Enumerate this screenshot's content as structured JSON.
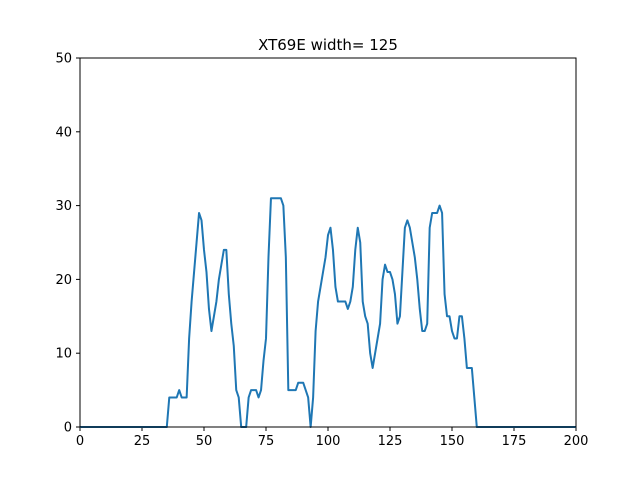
{
  "chart_data": {
    "type": "line",
    "title": "XT69E width= 125",
    "xlabel": "",
    "ylabel": "",
    "xlim": [
      0,
      200
    ],
    "ylim": [
      0,
      50
    ],
    "xticks": [
      0,
      25,
      50,
      75,
      100,
      125,
      150,
      175,
      200
    ],
    "yticks": [
      0,
      10,
      20,
      30,
      40,
      50
    ],
    "grid": false,
    "line_color": "#1f77b4",
    "series": [
      {
        "x": [
          0,
          35,
          36,
          37,
          38,
          39,
          40,
          41,
          42,
          43,
          44,
          45,
          46,
          47,
          48,
          49,
          50,
          51,
          52,
          53,
          54,
          55,
          56,
          57,
          58,
          59,
          60,
          61,
          62,
          63,
          64,
          65,
          66,
          67,
          68,
          69,
          70,
          71,
          72,
          73,
          74,
          75,
          76,
          77,
          78,
          79,
          80,
          81,
          82,
          83,
          84,
          85,
          86,
          87,
          88,
          89,
          90,
          91,
          92,
          93,
          94,
          95,
          96,
          97,
          98,
          99,
          100,
          101,
          102,
          103,
          104,
          105,
          106,
          107,
          108,
          109,
          110,
          111,
          112,
          113,
          114,
          115,
          116,
          117,
          118,
          119,
          120,
          121,
          122,
          123,
          124,
          125,
          126,
          127,
          128,
          129,
          130,
          131,
          132,
          133,
          134,
          135,
          136,
          137,
          138,
          139,
          140,
          141,
          142,
          143,
          144,
          145,
          146,
          147,
          148,
          149,
          150,
          151,
          152,
          153,
          154,
          155,
          156,
          157,
          158,
          159,
          160,
          161,
          200
        ],
        "y": [
          0,
          0,
          4,
          4,
          4,
          4,
          5,
          4,
          4,
          4,
          12,
          17,
          21,
          25,
          29,
          28,
          24,
          21,
          16,
          13,
          15,
          17,
          20,
          22,
          24,
          24,
          18,
          14,
          11,
          5,
          4,
          0,
          0,
          0,
          4,
          5,
          5,
          5,
          4,
          5,
          9,
          12,
          23,
          31,
          31,
          31,
          31,
          31,
          30,
          23,
          5,
          5,
          5,
          5,
          6,
          6,
          6,
          5,
          4,
          0,
          4,
          13,
          17,
          19,
          21,
          23,
          26,
          27,
          24,
          19,
          17,
          17,
          17,
          17,
          16,
          17,
          19,
          24,
          27,
          25,
          17,
          15,
          14,
          10,
          8,
          10,
          12,
          14,
          20,
          22,
          21,
          21,
          20,
          18,
          14,
          15,
          21,
          27,
          28,
          27,
          25,
          23,
          20,
          16,
          13,
          13,
          14,
          27,
          29,
          29,
          29,
          30,
          29,
          18,
          15,
          15,
          13,
          12,
          12,
          15,
          15,
          12,
          8,
          8,
          8,
          4,
          0,
          0,
          0
        ]
      }
    ]
  }
}
